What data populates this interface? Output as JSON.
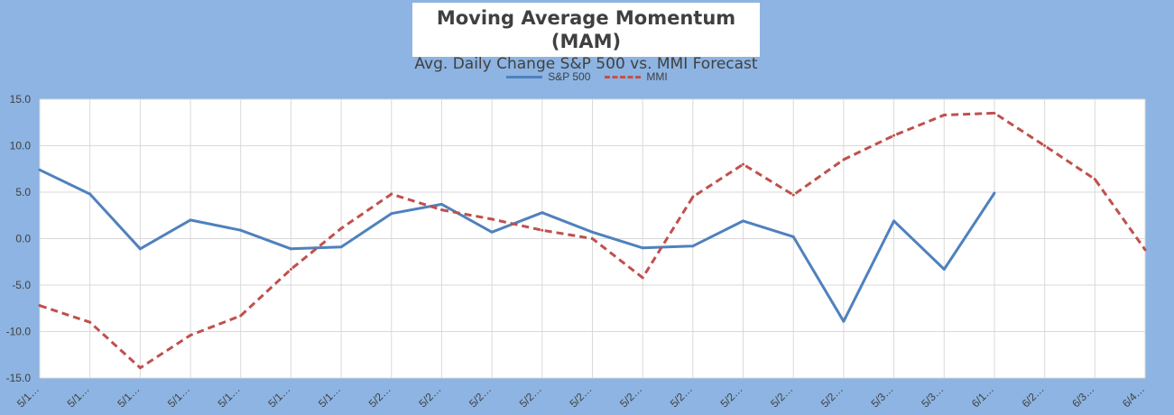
{
  "chart_data": {
    "type": "line",
    "title": "Moving Average Momentum (MAM)",
    "subtitle": "Avg. Daily Change S&P 500 vs. MMI Forecast",
    "categories": [
      "5/1…",
      "5/1…",
      "5/1…",
      "5/1…",
      "5/1…",
      "5/1…",
      "5/1…",
      "5/2…",
      "5/2…",
      "5/2…",
      "5/2…",
      "5/2…",
      "5/2…",
      "5/2…",
      "5/2…",
      "5/2…",
      "5/2…",
      "5/3…",
      "5/3…",
      "6/1…",
      "6/2…",
      "6/3…",
      "6/4…"
    ],
    "series": [
      {
        "name": "S&P 500",
        "color": "#4F81BD",
        "style": "solid",
        "values": [
          7.4,
          4.8,
          -1.1,
          2.0,
          0.9,
          -1.1,
          -0.9,
          2.7,
          3.7,
          0.7,
          2.8,
          0.7,
          -1.0,
          -0.8,
          1.9,
          0.2,
          -8.9,
          1.9,
          -3.3,
          4.9,
          null,
          null,
          null
        ]
      },
      {
        "name": "MMI",
        "color": "#C0504D",
        "style": "dashed",
        "values": [
          -7.2,
          -9.0,
          -13.9,
          -10.4,
          -8.3,
          -3.3,
          1.1,
          4.8,
          3.1,
          2.1,
          0.9,
          0.0,
          -4.2,
          4.5,
          8.0,
          4.7,
          8.5,
          11.1,
          13.3,
          13.5,
          10.0,
          6.4,
          -1.2
        ]
      }
    ],
    "yticks": [
      "15.0",
      "10.0",
      "5.0",
      "0.0",
      "-5.0",
      "-10.0",
      "-15.0"
    ],
    "ylim": [
      -15,
      15
    ],
    "legend": "top-center",
    "grid": true
  }
}
